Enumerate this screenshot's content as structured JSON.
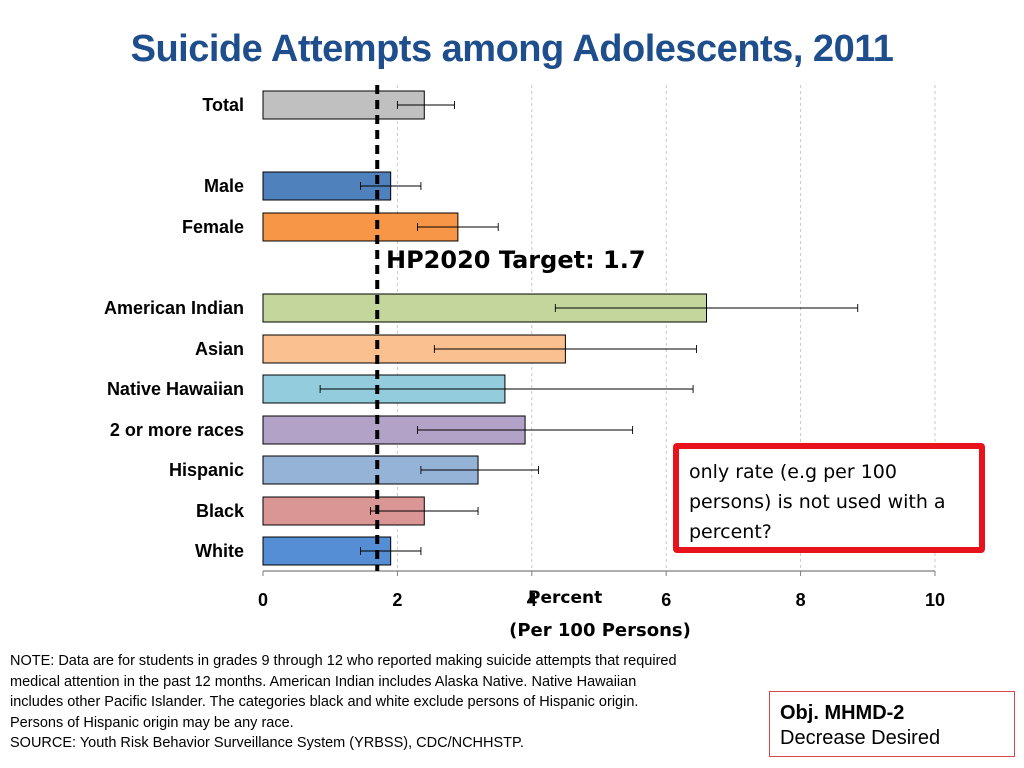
{
  "title": "Suicide Attempts among Adolescents, 2011",
  "chart_data": {
    "type": "bar",
    "orientation": "horizontal",
    "title": "Suicide Attempts among Adolescents, 2011",
    "xlabel": "Percent",
    "xlabel_sub": "(Per 100 Persons)",
    "xlim": [
      0,
      10
    ],
    "xticks": [
      "0",
      "2",
      "4",
      "6",
      "8",
      "10"
    ],
    "grid": "vertical dashed",
    "categories": [
      "Total",
      "Male",
      "Female",
      "American Indian",
      "Asian",
      "Native Hawaiian",
      "2 or more races",
      "Hispanic",
      "Black",
      "White"
    ],
    "values": [
      2.4,
      1.9,
      2.9,
      6.6,
      4.5,
      3.6,
      3.9,
      3.2,
      2.4,
      1.9
    ],
    "ci_low": [
      2.0,
      1.45,
      2.3,
      4.35,
      2.55,
      0.85,
      2.3,
      2.35,
      1.6,
      1.45
    ],
    "ci_high": [
      2.85,
      2.35,
      3.5,
      8.85,
      6.45,
      6.4,
      5.5,
      4.1,
      3.2,
      2.35
    ],
    "colors": [
      "#c0c0c0",
      "#4f81bd",
      "#f79646",
      "#c3d69b",
      "#fac090",
      "#93cddd",
      "#b3a2c7",
      "#95b3d7",
      "#d99694",
      "#558ed5"
    ],
    "target": {
      "value": 1.7,
      "label": "HP2020 Target: 1.7"
    }
  },
  "callout": {
    "lines": [
      "only rate (e.g per 100",
      "persons) is not used with a",
      "percent?"
    ],
    "border_color": "#e8121c"
  },
  "note": {
    "lines": [
      "NOTE: Data are for students in grades 9 through 12 who reported making suicide attempts that required",
      "medical attention in the past 12 months.  American Indian includes Alaska Native.  Native Hawaiian",
      "includes other Pacific Islander.  The categories black and white exclude persons of Hispanic origin.",
      "Persons of Hispanic origin may be any race.",
      "SOURCE: Youth Risk Behavior Surveillance System (YRBSS), CDC/NCHHSTP."
    ]
  },
  "objective": {
    "title": "Obj. MHMD-2",
    "subtitle": "Decrease Desired"
  }
}
